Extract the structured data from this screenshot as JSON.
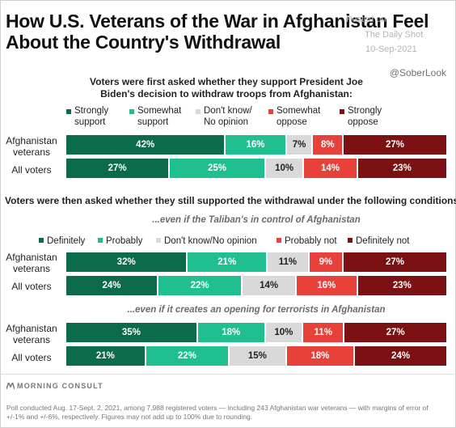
{
  "title": "How U.S. Veterans of the War in Afghanistan Feel About the Country's Withdrawal",
  "watermark": {
    "posted_on": "Posted on",
    "source": "The Daily Shot",
    "date": "10-Sep-2021",
    "handle": "@SoberLook"
  },
  "colors": {
    "dark_green": "#0b6b4a",
    "light_green": "#1fbf8f",
    "gray": "#d9d9d9",
    "red": "#e8413a",
    "dark_red": "#7c1113"
  },
  "section1": {
    "question": "Voters were first asked whether they support President Joe Biden's decision to withdraw troops from Afghanistan:",
    "legend": [
      {
        "line1": "Strongly",
        "line2": "support",
        "color": "#0b6b4a"
      },
      {
        "line1": "Somewhat",
        "line2": "support",
        "color": "#1fbf8f"
      },
      {
        "line1": "Don't know/",
        "line2": "No opinion",
        "color": "#d9d9d9"
      },
      {
        "line1": "Somewhat",
        "line2": "oppose",
        "color": "#e8413a"
      },
      {
        "line1": "Strongly",
        "line2": "oppose",
        "color": "#7c1113"
      }
    ]
  },
  "section2": {
    "question": "Voters were then asked whether they still supported the withdrawal under the following conditions:",
    "legend": [
      {
        "label": "Definitely",
        "color": "#0b6b4a"
      },
      {
        "label": "Probably",
        "color": "#1fbf8f"
      },
      {
        "label": "Don't know/No opinion",
        "color": "#d9d9d9"
      },
      {
        "label": "Probably not",
        "color": "#e8413a"
      },
      {
        "label": "Definitely not",
        "color": "#7c1113"
      }
    ],
    "condition1": "...even if the Taliban's in control of Afghanistan",
    "condition2": "...even if it creates an opening for terrorists in Afghanistan"
  },
  "row_labels": {
    "veterans_line1": "Afghanistan",
    "veterans_line2": "veterans",
    "all": "All voters"
  },
  "chart_data": [
    {
      "type": "bar",
      "stacked": true,
      "orientation": "horizontal",
      "title": "Voters were first asked whether they support President Joe Biden's decision to withdraw troops from Afghanistan:",
      "categories": [
        "Afghanistan veterans",
        "All voters"
      ],
      "series": [
        {
          "name": "Strongly support",
          "values": [
            42,
            27
          ]
        },
        {
          "name": "Somewhat support",
          "values": [
            16,
            25
          ]
        },
        {
          "name": "Don't know/No opinion",
          "values": [
            7,
            10
          ]
        },
        {
          "name": "Somewhat oppose",
          "values": [
            8,
            14
          ]
        },
        {
          "name": "Strongly oppose",
          "values": [
            27,
            23
          ]
        }
      ],
      "value_suffix": "%",
      "legend_position": "top"
    },
    {
      "type": "bar",
      "stacked": true,
      "orientation": "horizontal",
      "title": "...even if the Taliban's in control of Afghanistan",
      "categories": [
        "Afghanistan veterans",
        "All voters"
      ],
      "series": [
        {
          "name": "Definitely",
          "values": [
            32,
            24
          ]
        },
        {
          "name": "Probably",
          "values": [
            21,
            22
          ]
        },
        {
          "name": "Don't know/No opinion",
          "values": [
            11,
            14
          ]
        },
        {
          "name": "Probably not",
          "values": [
            9,
            16
          ]
        },
        {
          "name": "Definitely not",
          "values": [
            27,
            23
          ]
        }
      ],
      "value_suffix": "%",
      "legend_position": "top"
    },
    {
      "type": "bar",
      "stacked": true,
      "orientation": "horizontal",
      "title": "...even if it creates an opening for terrorists in Afghanistan",
      "categories": [
        "Afghanistan veterans",
        "All voters"
      ],
      "series": [
        {
          "name": "Definitely",
          "values": [
            35,
            21
          ]
        },
        {
          "name": "Probably",
          "values": [
            18,
            22
          ]
        },
        {
          "name": "Don't know/No opinion",
          "values": [
            10,
            15
          ]
        },
        {
          "name": "Probably not",
          "values": [
            11,
            18
          ]
        },
        {
          "name": "Definitely not",
          "values": [
            27,
            24
          ]
        }
      ],
      "value_suffix": "%",
      "legend_position": "top"
    }
  ],
  "brand": "MORNING CONSULT",
  "footer": "Poll conducted Aug. 17-Sept. 2, 2021, among 7,988 registered voters — including 243 Afghanistan war veterans — with margins of error of +/-1% and +/-6%, respectively. Figures may not add up to 100% due to rounding."
}
